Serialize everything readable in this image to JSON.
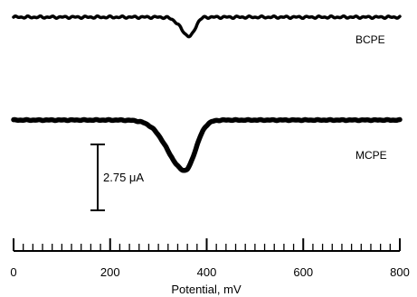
{
  "chart_data": {
    "type": "line",
    "xlabel": "Potential, mV",
    "xlim": [
      0,
      800
    ],
    "x_ticks": [
      0,
      200,
      400,
      600,
      800
    ],
    "x_tick_labels": [
      "0",
      "200",
      "400",
      "600",
      "800"
    ],
    "minor_tick_step": 20,
    "grid": false,
    "legend": "none",
    "scale_bar": {
      "label": "2.75 μA",
      "value": 2.75
    },
    "series": [
      {
        "name": "BCPE",
        "peak_potential": 365,
        "peak_current": 0.8,
        "peak_width_left": 25,
        "peak_width_right": 15,
        "x": [
          0,
          100,
          200,
          300,
          330,
          345,
          355,
          365,
          375,
          390,
          420,
          500,
          600,
          700,
          800
        ],
        "y": [
          0,
          0,
          0,
          -0.05,
          -0.25,
          -0.5,
          -0.7,
          -0.8,
          -0.7,
          -0.35,
          -0.05,
          0,
          0,
          0,
          0
        ]
      },
      {
        "name": "MCPE",
        "peak_potential": 355,
        "peak_current": 2.1,
        "peak_width_left": 50,
        "peak_width_right": 30,
        "x": [
          0,
          100,
          200,
          250,
          290,
          320,
          340,
          355,
          370,
          390,
          410,
          440,
          500,
          600,
          700,
          800
        ],
        "y": [
          0,
          0,
          0,
          -0.05,
          -0.4,
          -1.1,
          -1.75,
          -2.1,
          -1.8,
          -0.9,
          -0.3,
          -0.05,
          0,
          0,
          0,
          0
        ]
      }
    ],
    "colors": {
      "trace": "#000000"
    }
  }
}
